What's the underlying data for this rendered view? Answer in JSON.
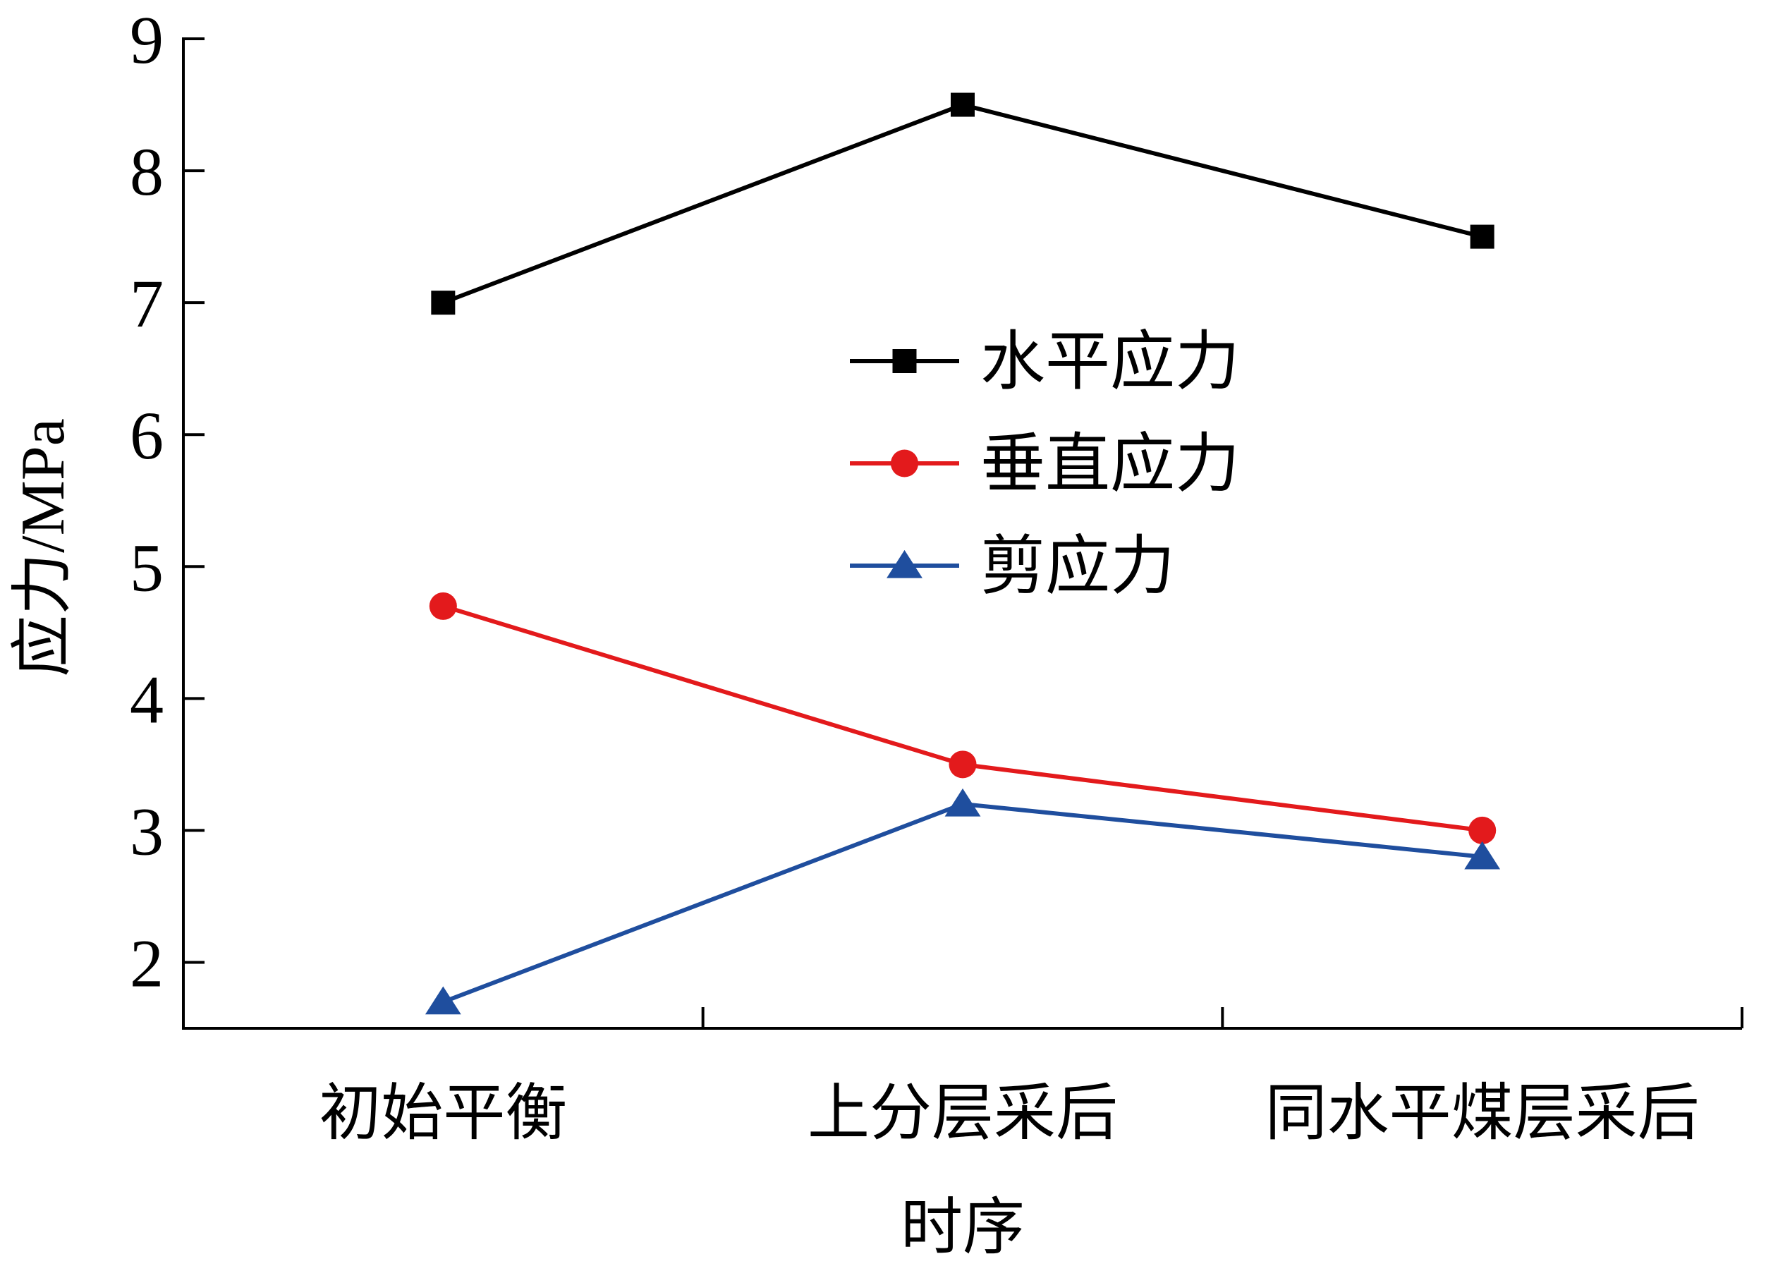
{
  "chart_data": {
    "type": "line",
    "xlabel": "时序",
    "ylabel": "应力/MPa",
    "categories": [
      "初始平衡",
      "上分层采后",
      "同水平煤层采后"
    ],
    "yticks": [
      "2",
      "3",
      "4",
      "5",
      "6",
      "7",
      "8",
      "9"
    ],
    "ylim": [
      1.5,
      9
    ],
    "grid": false,
    "legend_position": "center",
    "series": [
      {
        "name": "水平应力",
        "values": [
          7.0,
          8.5,
          7.5
        ],
        "color": "#000000",
        "marker": "square"
      },
      {
        "name": "垂直应力",
        "values": [
          4.7,
          3.5,
          3.0
        ],
        "color": "#e31a1c",
        "marker": "circle"
      },
      {
        "name": "剪应力",
        "values": [
          1.7,
          3.2,
          2.8
        ],
        "color": "#1f4e9e",
        "marker": "triangle"
      }
    ]
  }
}
